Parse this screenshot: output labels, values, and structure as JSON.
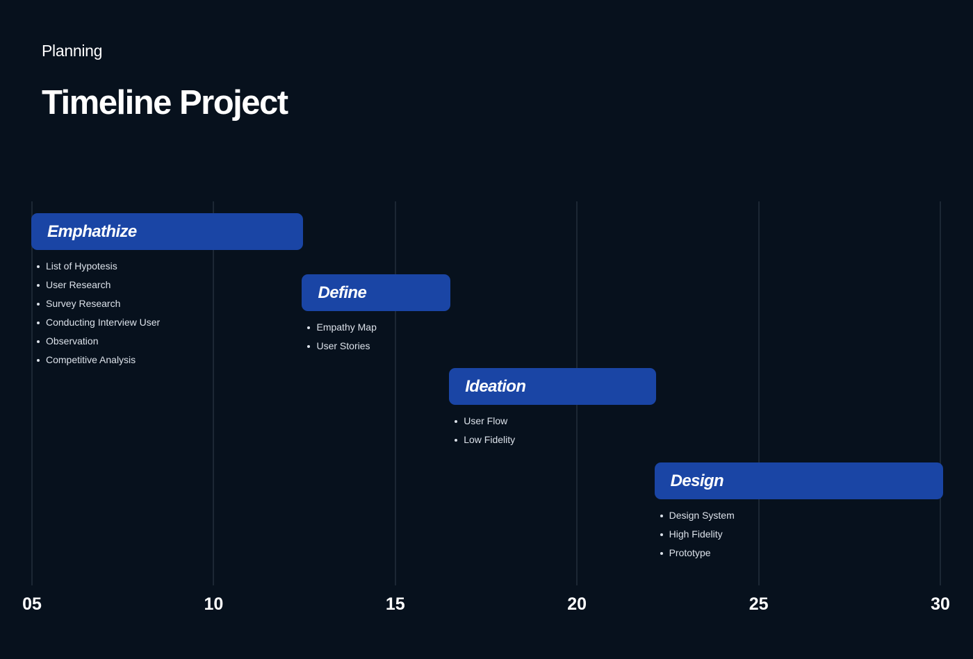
{
  "header": {
    "subtitle": "Planning",
    "title": "Timeline Project"
  },
  "colors": {
    "background": "#07111d",
    "bar": "#1a45a5",
    "grid": "#1c2734",
    "text": "#ffffff",
    "task_text": "#dce2ea"
  },
  "chart_data": {
    "type": "gantt",
    "x_ticks": [
      "05",
      "10",
      "15",
      "20",
      "25",
      "30"
    ],
    "x_range": [
      5,
      30
    ],
    "grid": true,
    "phases": [
      {
        "label": "Emphathize",
        "start": 5,
        "end": 12.45,
        "tasks": [
          "List of Hypotesis",
          "User Research",
          "Survey Research",
          "Conducting Interview User",
          "Observation",
          "Competitive Analysis"
        ]
      },
      {
        "label": "Define",
        "start": 12.45,
        "end": 16.5,
        "tasks": [
          "Empathy Map",
          "User Stories"
        ]
      },
      {
        "label": "Ideation",
        "start": 16.5,
        "end": 22.15,
        "tasks": [
          "User Flow",
          "Low Fidelity"
        ]
      },
      {
        "label": "Design",
        "start": 22.15,
        "end": 30.05,
        "tasks": [
          "Design System",
          "High Fidelity",
          "Prototype"
        ]
      }
    ]
  }
}
